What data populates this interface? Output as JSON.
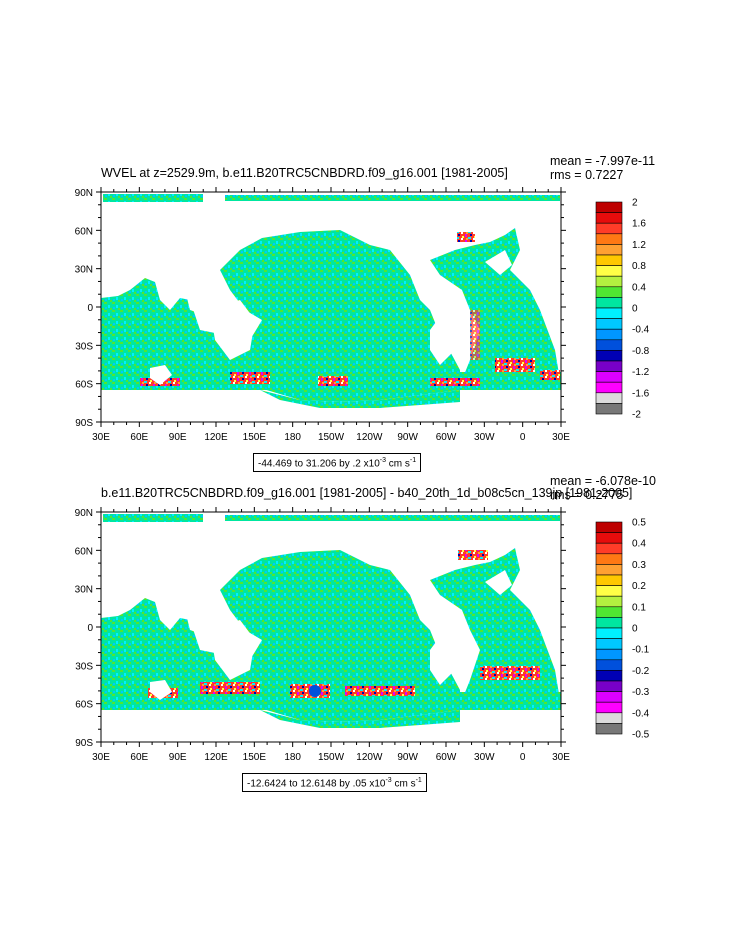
{
  "panels": [
    {
      "title": "WVEL at z=2529.9m, b.e11.B20TRC5CNBDRD.f09_g16.001 [1981-2005]",
      "mean_label": "mean = -7.997e-11",
      "rms_label": "rms = 0.7227",
      "range_text": "-44.469 to 31.206 by .2 x10",
      "range_exp": "-3",
      "range_unit": " cm s",
      "range_unit_exp": "-1",
      "colorbar_labels": [
        "2",
        "1.6",
        "1.2",
        "0.8",
        "0.4",
        "0",
        "-0.4",
        "-0.8",
        "-1.2",
        "-1.6",
        "-2"
      ]
    },
    {
      "title": "b.e11.B20TRC5CNBDRD.f09_g16.001 [1981-2005] - b40_20th_1d_b08c5cn_139jp [1981-2005]",
      "mean_label": "mean = -6.078e-10",
      "rms_label": "rms = 0.2775",
      "range_text": "-12.6424 to 12.6148 by .05 x10",
      "range_exp": "-3",
      "range_unit": " cm s",
      "range_unit_exp": "-1",
      "colorbar_labels": [
        "0.5",
        "0.4",
        "0.3",
        "0.2",
        "0.1",
        "0",
        "-0.1",
        "-0.2",
        "-0.3",
        "-0.4",
        "-0.5"
      ]
    }
  ],
  "axes": {
    "lat_labels": [
      "90N",
      "60N",
      "30N",
      "0",
      "30S",
      "60S",
      "90S"
    ],
    "lon_labels": [
      "30E",
      "60E",
      "90E",
      "120E",
      "150E",
      "180",
      "150W",
      "120W",
      "90W",
      "60W",
      "30W",
      "0",
      "30E"
    ]
  },
  "colorbar_colors": [
    "#be0000",
    "#e60c0c",
    "#ff3c28",
    "#ff7814",
    "#ffa032",
    "#ffc800",
    "#ffff46",
    "#b4f040",
    "#50e632",
    "#00e6a0",
    "#00f0ff",
    "#00c8ff",
    "#0096ff",
    "#0050dc",
    "#0000b4",
    "#7800c8",
    "#dc00ff",
    "#ff00ff",
    "#dcdcdc",
    "#787878"
  ]
}
